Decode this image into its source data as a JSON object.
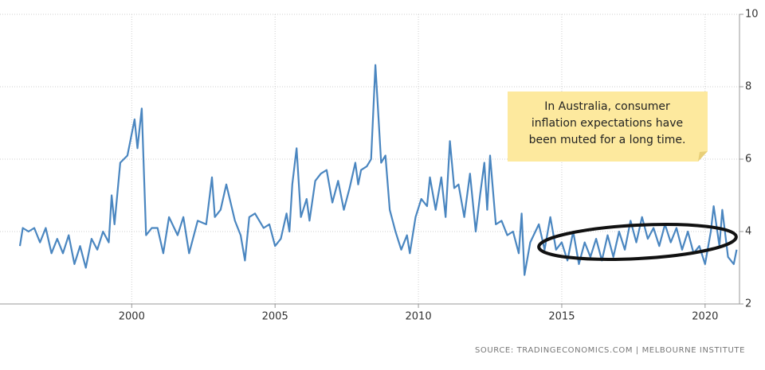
{
  "chart_data": {
    "type": "line",
    "color": "#4a86c0",
    "xlim": [
      1996.1,
      2021.2
    ],
    "ylim": [
      2,
      10
    ],
    "xticks": [
      2000,
      2005,
      2010,
      2015,
      2020
    ],
    "yticks": [
      2,
      4,
      6,
      8,
      10
    ],
    "grid": true,
    "annotation": [
      "In Australia, consumer",
      "inflation expectations have",
      "been muted for a long time."
    ],
    "source": "SOURCE: TRADINGECONOMICS.COM | MELBOURNE INSTITUTE",
    "x": [
      1996.1,
      1996.2,
      1996.4,
      1996.6,
      1996.8,
      1997.0,
      1997.2,
      1997.4,
      1997.6,
      1997.8,
      1998.0,
      1998.2,
      1998.4,
      1998.6,
      1998.8,
      1999.0,
      1999.2,
      1999.3,
      1999.4,
      1999.6,
      1999.85,
      2000.1,
      2000.2,
      2000.35,
      2000.5,
      2000.7,
      2000.9,
      2001.1,
      2001.3,
      2001.6,
      2001.8,
      2002.0,
      2002.3,
      2002.6,
      2002.8,
      2002.9,
      2003.1,
      2003.3,
      2003.6,
      2003.8,
      2003.95,
      2004.1,
      2004.3,
      2004.6,
      2004.8,
      2005.0,
      2005.2,
      2005.4,
      2005.5,
      2005.6,
      2005.75,
      2005.9,
      2006.1,
      2006.2,
      2006.4,
      2006.6,
      2006.8,
      2007.0,
      2007.2,
      2007.4,
      2007.6,
      2007.8,
      2007.9,
      2008.0,
      2008.2,
      2008.35,
      2008.5,
      2008.7,
      2008.85,
      2009.0,
      2009.2,
      2009.4,
      2009.6,
      2009.7,
      2009.9,
      2010.1,
      2010.3,
      2010.4,
      2010.6,
      2010.8,
      2010.95,
      2011.1,
      2011.25,
      2011.4,
      2011.6,
      2011.8,
      2012.0,
      2012.15,
      2012.3,
      2012.4,
      2012.5,
      2012.7,
      2012.9,
      2013.1,
      2013.3,
      2013.5,
      2013.6,
      2013.7,
      2013.9,
      2014.2,
      2014.4,
      2014.6,
      2014.8,
      2015.0,
      2015.2,
      2015.4,
      2015.6,
      2015.8,
      2016.0,
      2016.2,
      2016.4,
      2016.6,
      2016.8,
      2017.0,
      2017.2,
      2017.4,
      2017.6,
      2017.8,
      2018.0,
      2018.2,
      2018.4,
      2018.6,
      2018.8,
      2019.0,
      2019.2,
      2019.4,
      2019.6,
      2019.8,
      2020.0,
      2020.2,
      2020.3,
      2020.5,
      2020.6,
      2020.8,
      2021.0,
      2021.1
    ],
    "values": [
      3.6,
      4.1,
      4.0,
      4.1,
      3.7,
      4.1,
      3.4,
      3.8,
      3.4,
      3.9,
      3.1,
      3.6,
      3.0,
      3.8,
      3.5,
      4.0,
      3.7,
      5.0,
      4.2,
      5.9,
      6.1,
      7.1,
      6.3,
      7.4,
      3.9,
      4.1,
      4.1,
      3.4,
      4.4,
      3.9,
      4.4,
      3.4,
      4.3,
      4.2,
      5.5,
      4.4,
      4.6,
      5.3,
      4.3,
      3.9,
      3.2,
      4.4,
      4.5,
      4.1,
      4.2,
      3.6,
      3.8,
      4.5,
      4.0,
      5.3,
      6.3,
      4.4,
      4.9,
      4.3,
      5.4,
      5.6,
      5.7,
      4.8,
      5.4,
      4.6,
      5.2,
      5.9,
      5.3,
      5.7,
      5.8,
      6.0,
      8.6,
      5.9,
      6.1,
      4.6,
      4.0,
      3.5,
      3.9,
      3.4,
      4.4,
      4.9,
      4.7,
      5.5,
      4.6,
      5.5,
      4.4,
      6.5,
      5.2,
      5.3,
      4.4,
      5.6,
      4.0,
      5.0,
      5.9,
      4.6,
      6.1,
      4.2,
      4.3,
      3.9,
      4.0,
      3.4,
      4.5,
      2.8,
      3.7,
      4.2,
      3.5,
      4.4,
      3.5,
      3.7,
      3.2,
      4.0,
      3.1,
      3.7,
      3.3,
      3.8,
      3.2,
      3.9,
      3.3,
      4.0,
      3.5,
      4.3,
      3.7,
      4.4,
      3.8,
      4.1,
      3.6,
      4.2,
      3.7,
      4.1,
      3.5,
      4.0,
      3.4,
      3.6,
      3.1,
      4.0,
      4.7,
      3.6,
      4.6,
      3.3,
      3.1,
      3.5
    ]
  }
}
